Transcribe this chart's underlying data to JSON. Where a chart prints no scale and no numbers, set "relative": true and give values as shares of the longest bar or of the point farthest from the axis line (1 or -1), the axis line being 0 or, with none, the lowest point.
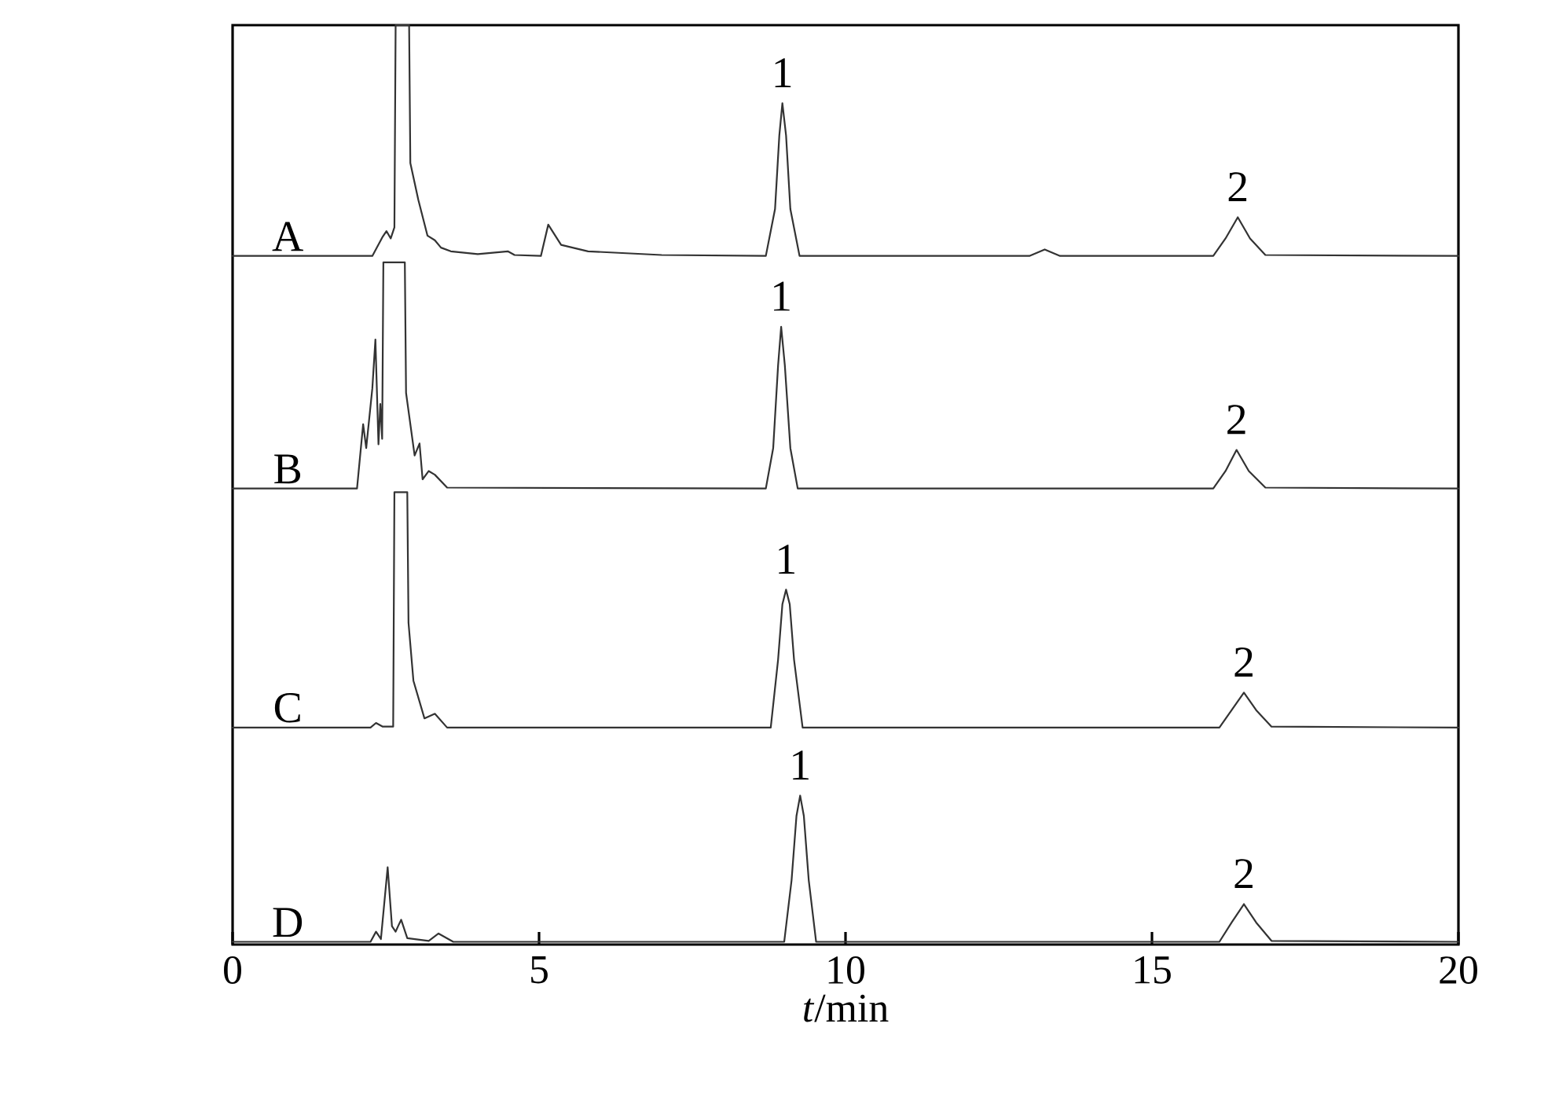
{
  "chart_data": {
    "type": "line",
    "relative": true,
    "xlabel": "*t*/min",
    "xlim": [
      0,
      20
    ],
    "xticks": [
      0,
      5,
      10,
      15,
      20
    ],
    "series": [
      {
        "name": "A",
        "color": "#333333",
        "x": [
          0,
          2.28,
          2.45,
          2.51,
          2.58,
          2.64,
          2.66,
          2.88,
          2.9,
          3.03,
          3.18,
          3.3,
          3.4,
          3.56,
          4.0,
          4.49,
          4.6,
          5.03,
          5.15,
          5.36,
          5.8,
          7.0,
          8.7,
          8.85,
          8.92,
          8.97,
          9.03,
          9.1,
          9.25,
          13.0,
          13.25,
          13.5,
          16.0,
          16.2,
          16.4,
          16.6,
          16.85,
          20
        ],
        "values": [
          0.749,
          0.749,
          0.77,
          0.776,
          0.768,
          0.78,
          1.0,
          1.0,
          0.85,
          0.81,
          0.771,
          0.766,
          0.758,
          0.754,
          0.751,
          0.754,
          0.75,
          0.749,
          0.783,
          0.761,
          0.754,
          0.75,
          0.749,
          0.8,
          0.88,
          0.915,
          0.88,
          0.8,
          0.749,
          0.749,
          0.756,
          0.749,
          0.749,
          0.768,
          0.791,
          0.768,
          0.75,
          0.749
        ]
      },
      {
        "name": "B",
        "color": "#333333",
        "x": [
          0,
          2.03,
          2.13,
          2.18,
          2.28,
          2.33,
          2.38,
          2.41,
          2.44,
          2.46,
          2.81,
          2.83,
          2.97,
          3.05,
          3.1,
          3.2,
          3.3,
          3.5,
          8.7,
          8.82,
          8.9,
          8.95,
          9.01,
          9.1,
          9.22,
          16.0,
          16.2,
          16.38,
          16.58,
          16.85,
          20
        ],
        "values": [
          0.496,
          0.496,
          0.566,
          0.54,
          0.605,
          0.658,
          0.544,
          0.588,
          0.55,
          0.742,
          0.742,
          0.6,
          0.532,
          0.545,
          0.506,
          0.515,
          0.511,
          0.497,
          0.496,
          0.54,
          0.63,
          0.672,
          0.63,
          0.54,
          0.496,
          0.496,
          0.515,
          0.538,
          0.515,
          0.497,
          0.496
        ]
      },
      {
        "name": "C",
        "color": "#333333",
        "x": [
          0,
          2.25,
          2.34,
          2.45,
          2.62,
          2.64,
          2.85,
          2.87,
          2.95,
          3.13,
          3.3,
          3.5,
          8.78,
          8.9,
          8.97,
          9.03,
          9.09,
          9.16,
          9.3,
          16.1,
          16.3,
          16.5,
          16.7,
          16.95,
          20
        ],
        "values": [
          0.236,
          0.236,
          0.241,
          0.237,
          0.237,
          0.492,
          0.492,
          0.35,
          0.287,
          0.246,
          0.251,
          0.236,
          0.236,
          0.31,
          0.37,
          0.386,
          0.37,
          0.31,
          0.236,
          0.236,
          0.255,
          0.274,
          0.255,
          0.237,
          0.236
        ]
      },
      {
        "name": "D",
        "color": "#333333",
        "x": [
          0,
          2.25,
          2.34,
          2.42,
          2.53,
          2.6,
          2.66,
          2.7,
          2.75,
          2.85,
          3.2,
          3.36,
          3.6,
          9.0,
          9.12,
          9.2,
          9.26,
          9.32,
          9.4,
          9.52,
          16.1,
          16.3,
          16.5,
          16.7,
          16.95,
          20
        ],
        "values": [
          0.003,
          0.003,
          0.014,
          0.006,
          0.084,
          0.02,
          0.014,
          0.02,
          0.027,
          0.007,
          0.004,
          0.012,
          0.003,
          0.003,
          0.07,
          0.14,
          0.162,
          0.14,
          0.07,
          0.003,
          0.003,
          0.024,
          0.044,
          0.024,
          0.004,
          0.003
        ]
      }
    ],
    "annotations": [
      {
        "text": "1",
        "x": 8.97,
        "y": 0.915
      },
      {
        "text": "2",
        "x": 16.4,
        "y": 0.791
      },
      {
        "text": "1",
        "x": 8.95,
        "y": 0.672
      },
      {
        "text": "2",
        "x": 16.38,
        "y": 0.538
      },
      {
        "text": "1",
        "x": 9.03,
        "y": 0.386
      },
      {
        "text": "2",
        "x": 16.5,
        "y": 0.274
      },
      {
        "text": "1",
        "x": 9.26,
        "y": 0.162
      },
      {
        "text": "2",
        "x": 16.5,
        "y": 0.044
      }
    ]
  }
}
